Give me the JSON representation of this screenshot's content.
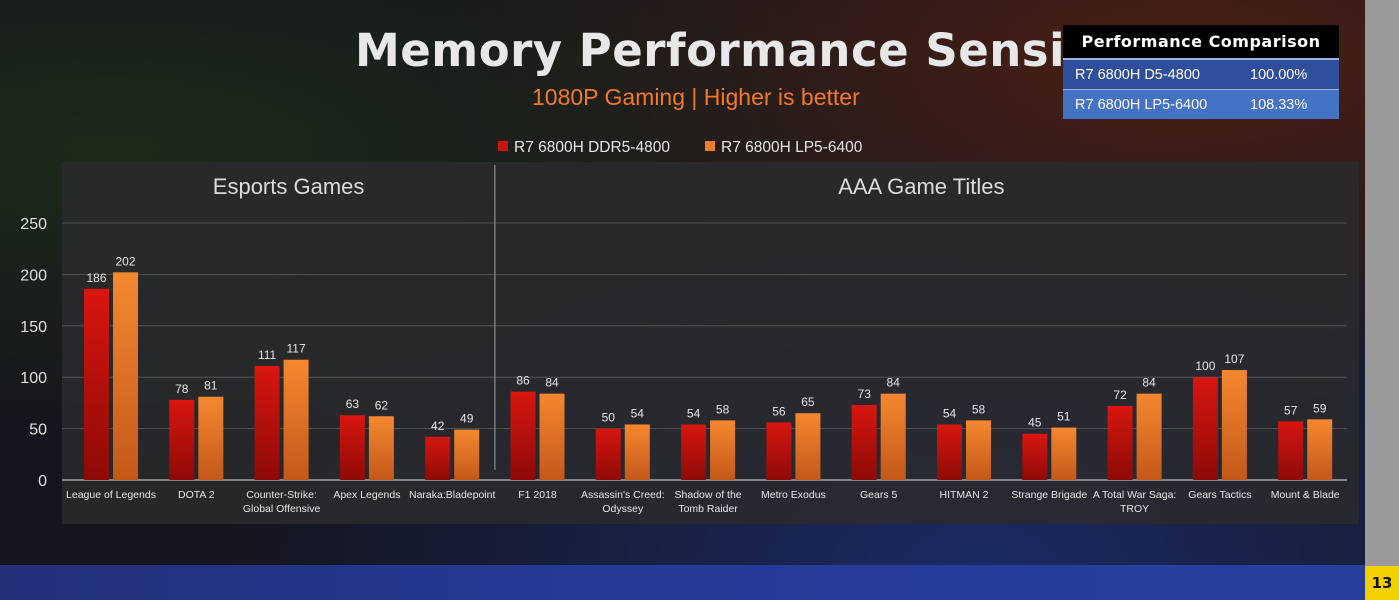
{
  "title": "Memory Performance Sensitivity",
  "subtitle": "1080P Gaming | Higher is better",
  "page_number": "13",
  "comparison_table": {
    "header": "Performance Comparison",
    "rows": [
      {
        "name": "R7 6800H D5-4800",
        "value": "100.00%"
      },
      {
        "name": "R7 6800H LP5-6400",
        "value": "108.33%"
      }
    ]
  },
  "chart_data": {
    "type": "bar",
    "title": "Memory Performance Sensitivity",
    "subtitle": "1080P Gaming | Higher is better",
    "ylim": [
      0,
      250
    ],
    "yticks": [
      0,
      50,
      100,
      150,
      200,
      250
    ],
    "grid": true,
    "legend_position": "top-center",
    "groups": [
      {
        "label": "Esports Games",
        "start": 0,
        "end": 4
      },
      {
        "label": "AAA Game Titles",
        "start": 5,
        "end": 14
      }
    ],
    "categories": [
      [
        "League of Legends"
      ],
      [
        "DOTA 2"
      ],
      [
        "Counter-Strike:",
        "Global Offensive"
      ],
      [
        "Apex Legends"
      ],
      [
        "Naraka:Bladepoint"
      ],
      [
        "F1 2018"
      ],
      [
        "Assassin's Creed:",
        "Odyssey"
      ],
      [
        "Shadow of the",
        "Tomb Raider"
      ],
      [
        "Metro Exodus"
      ],
      [
        "Gears 5"
      ],
      [
        "HITMAN 2"
      ],
      [
        "Strange Brigade"
      ],
      [
        "A Total War Saga:",
        "TROY"
      ],
      [
        "Gears Tactics"
      ],
      [
        "Mount & Blade"
      ]
    ],
    "series": [
      {
        "name": "R7 6800H DDR5-4800",
        "color": "#c8100f",
        "values": [
          186,
          78,
          111,
          63,
          42,
          86,
          50,
          54,
          56,
          73,
          54,
          45,
          72,
          100,
          57
        ]
      },
      {
        "name": "R7 6800H LP5-6400",
        "color": "#f07d2a",
        "values": [
          202,
          81,
          117,
          62,
          49,
          84,
          54,
          58,
          65,
          84,
          58,
          51,
          84,
          107,
          59
        ]
      }
    ]
  }
}
